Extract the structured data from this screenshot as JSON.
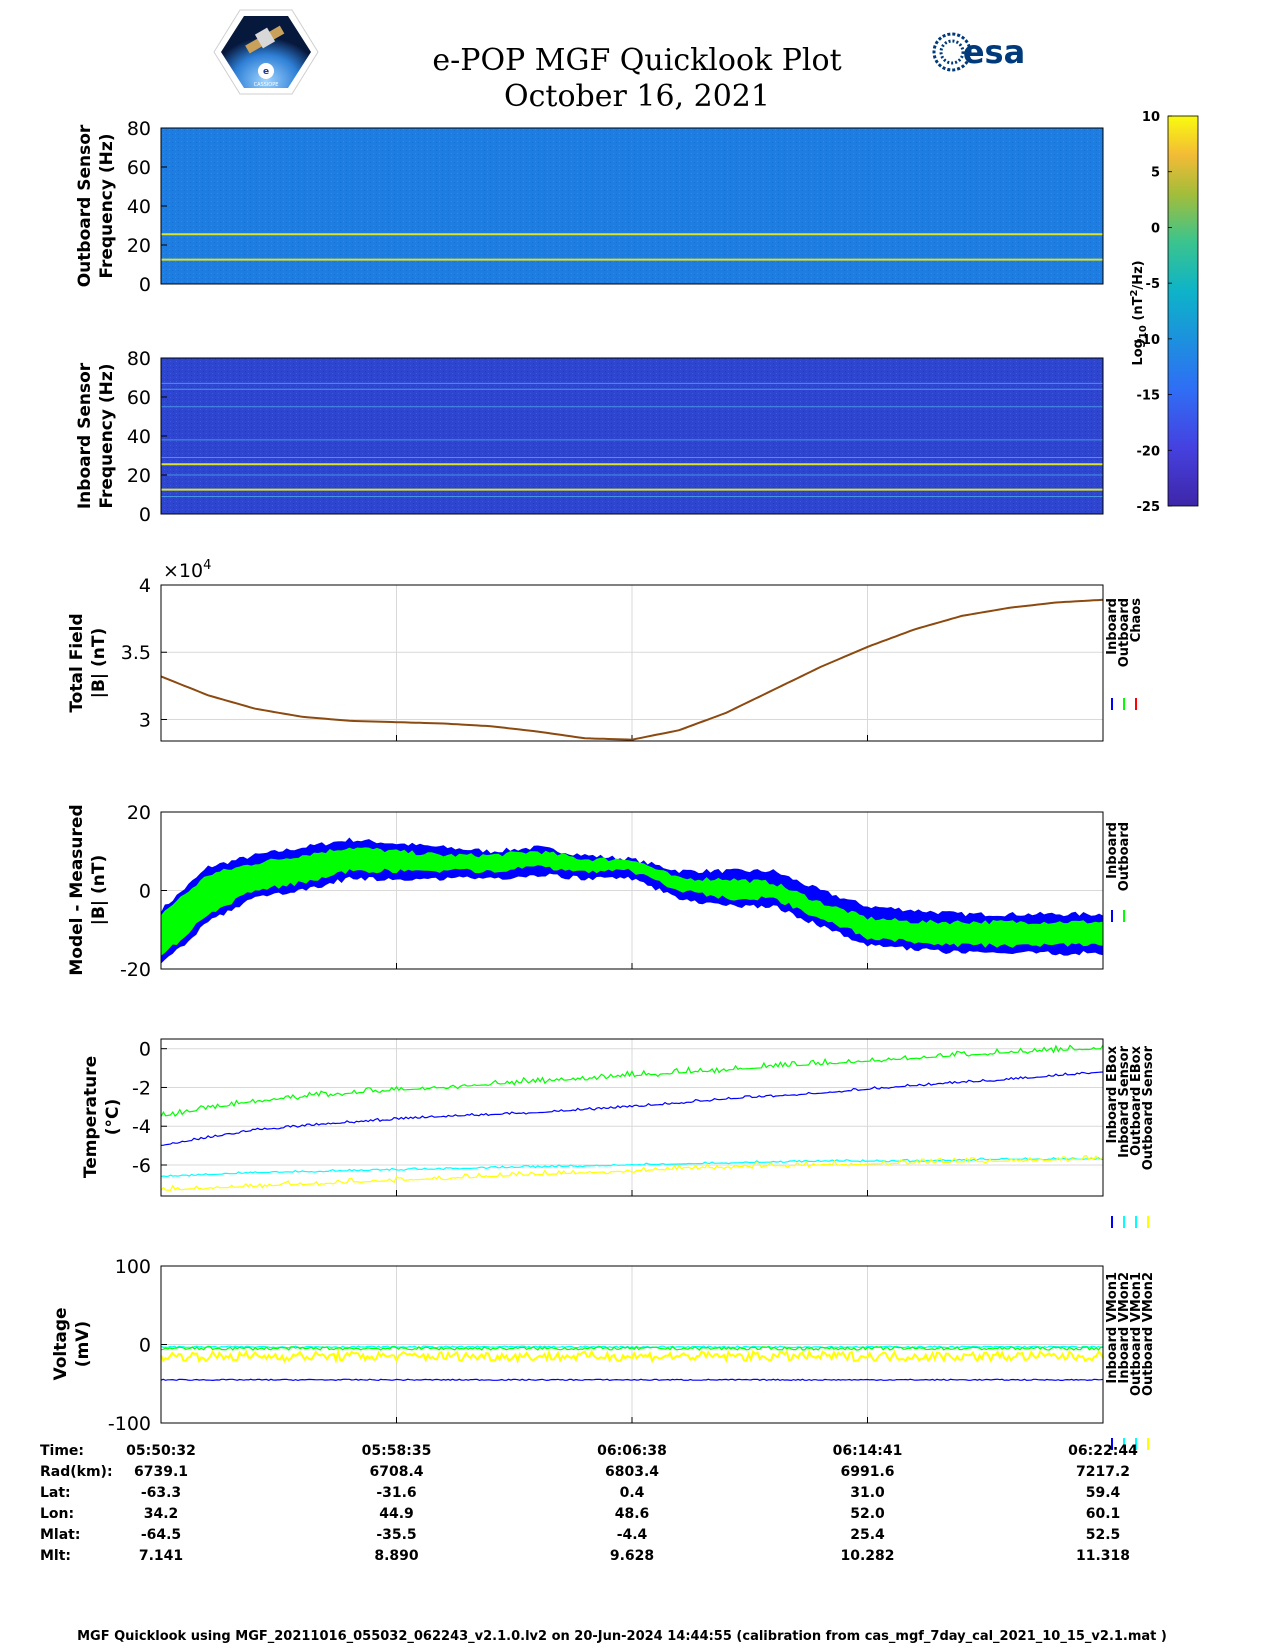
{
  "header": {
    "title": "e-POP MGF Quicklook Plot",
    "date": "October 16, 2021",
    "logo_left": "CASSIOPE",
    "logo_right": "esa"
  },
  "colors": {
    "inboard": "#0000ff",
    "outboard": "#00ff00",
    "chaos": "#ff0000",
    "outboard_ebox": "#00ffff",
    "outboard_sensor": "#ffff00",
    "line_brown": "#8b4a10",
    "spec_bg_out": "#1e7de0",
    "spec_bg_in": "#2e46cf",
    "line_yellow": "#dbe22c"
  },
  "colorbar": {
    "label_main": "Log",
    "label_sub": "10",
    "label_unit": " (nT",
    "label_exp": "2",
    "label_end": "/Hz)",
    "ticks": [
      "10",
      "5",
      "0",
      "-5",
      "-10",
      "-15",
      "-20",
      "-25"
    ],
    "range": [
      -25,
      10
    ]
  },
  "panels": {
    "outboard_spec": {
      "ylabel1": "Outboard Sensor",
      "ylabel2": "Frequency (Hz)",
      "ticks": [
        "80",
        "60",
        "40",
        "20",
        "0"
      ]
    },
    "inboard_spec": {
      "ylabel1": "Inboard Sensor",
      "ylabel2": "Frequency (Hz)",
      "ticks": [
        "80",
        "60",
        "40",
        "20",
        "0"
      ]
    },
    "total": {
      "ylabel1": "Total Field",
      "ylabel2": "|B| (nT)",
      "ticks": [
        "4",
        "3.5",
        "3"
      ],
      "multiplier": "×10",
      "exp": "4",
      "legend": [
        "Inboard",
        "Outboard",
        "Chaos"
      ]
    },
    "model": {
      "ylabel1": "Model - Measured",
      "ylabel2": "|B| (nT)",
      "ticks": [
        "20",
        "0",
        "-20"
      ],
      "legend": [
        "Inboard",
        "Outboard"
      ]
    },
    "temp": {
      "ylabel1": "Temperature",
      "ylabel2": "(°C)",
      "ticks": [
        "0",
        "-2",
        "-4",
        "-6"
      ],
      "legend": [
        "Inboard EBox",
        "Inboard Sensor",
        "Outboard EBox",
        "Outboard Sensor"
      ]
    },
    "volt": {
      "ylabel1": "Voltage",
      "ylabel2": "(mV)",
      "ticks": [
        "100",
        "0",
        "-100"
      ],
      "legend": [
        "Inboard VMon1",
        "Inboard VMon2",
        "Outboard VMon1",
        "Outboard VMon2"
      ]
    }
  },
  "ephemeris": {
    "labels": [
      "Time:",
      "Rad(km):",
      "Lat:",
      "Lon:",
      "Mlat:",
      "Mlt:"
    ],
    "columns": [
      [
        "05:50:32",
        "6739.1",
        "-63.3",
        "34.2",
        "-64.5",
        "7.141"
      ],
      [
        "05:58:35",
        "6708.4",
        "-31.6",
        "44.9",
        "-35.5",
        "8.890"
      ],
      [
        "06:06:38",
        "6803.4",
        "0.4",
        "48.6",
        "-4.4",
        "9.628"
      ],
      [
        "06:14:41",
        "6991.6",
        "31.0",
        "52.0",
        "25.4",
        "10.282"
      ],
      [
        "06:22:44",
        "7217.2",
        "59.4",
        "60.1",
        "52.5",
        "11.318"
      ]
    ]
  },
  "footer": "MGF Quicklook using MGF_20211016_055032_062243_v2.1.0.lv2 on 20-Jun-2024 14:44:55 (calibration from cas_mgf_7day_cal_2021_10_15_v2.1.mat )",
  "chart_data": [
    {
      "type": "heatmap",
      "name": "Outboard spectrogram",
      "ylabel": "Outboard Sensor Frequency (Hz)",
      "ylim": [
        0,
        80
      ],
      "background_log10_psd": -17,
      "lines_hz": [
        12.5,
        25.5
      ],
      "colorbar_range": [
        -25,
        10
      ]
    },
    {
      "type": "heatmap",
      "name": "Inboard spectrogram",
      "ylabel": "Inboard Sensor Frequency (Hz)",
      "ylim": [
        0,
        80
      ],
      "background_log10_psd": -21,
      "lines_hz": [
        9,
        12.5,
        20,
        25.5,
        29,
        38,
        55,
        64,
        67
      ],
      "colorbar_range": [
        -25,
        10
      ]
    },
    {
      "type": "line",
      "name": "Total Field",
      "ylabel": "Total Field |B| (nT)",
      "ylim": [
        28400,
        40000
      ],
      "tick_scale": 10000,
      "x": [
        0,
        0.05,
        0.1,
        0.15,
        0.2,
        0.25,
        0.3,
        0.35,
        0.4,
        0.45,
        0.5,
        0.55,
        0.6,
        0.65,
        0.7,
        0.75,
        0.8,
        0.85,
        0.9,
        0.95,
        1.0
      ],
      "series": [
        {
          "name": "Inboard",
          "values": [
            33200,
            31800,
            30800,
            30200,
            29900,
            29800,
            29700,
            29500,
            29100,
            28600,
            28500,
            29200,
            30500,
            32200,
            33900,
            35400,
            36700,
            37700,
            38300,
            38700,
            38900
          ]
        },
        {
          "name": "Outboard",
          "values": [
            33200,
            31800,
            30800,
            30200,
            29900,
            29800,
            29700,
            29500,
            29100,
            28600,
            28500,
            29200,
            30500,
            32200,
            33900,
            35400,
            36700,
            37700,
            38300,
            38700,
            38900
          ]
        },
        {
          "name": "Chaos",
          "values": [
            33200,
            31800,
            30800,
            30200,
            29900,
            29800,
            29700,
            29500,
            29100,
            28600,
            28500,
            29200,
            30500,
            32200,
            33900,
            35400,
            36700,
            37700,
            38300,
            38700,
            38900
          ]
        }
      ]
    },
    {
      "type": "area",
      "name": "Model - Measured",
      "ylabel": "Model - Measured |B| (nT)",
      "ylim": [
        -20,
        20
      ],
      "x": [
        0,
        0.05,
        0.1,
        0.15,
        0.2,
        0.25,
        0.3,
        0.35,
        0.4,
        0.45,
        0.5,
        0.55,
        0.6,
        0.65,
        0.7,
        0.75,
        0.8,
        0.85,
        0.9,
        0.95,
        1.0
      ],
      "series": [
        {
          "name": "Inboard",
          "upper": [
            -5,
            6,
            9,
            11,
            13,
            12,
            11,
            10,
            11,
            9,
            8,
            5,
            5,
            5,
            0,
            -4,
            -5,
            -6,
            -6,
            -6,
            -6
          ],
          "lower": [
            -19,
            -8,
            -2,
            0,
            3,
            3,
            3,
            3,
            4,
            3,
            3,
            -2,
            -4,
            -4,
            -9,
            -14,
            -15,
            -16,
            -16,
            -16,
            -16
          ]
        },
        {
          "name": "Outboard",
          "upper": [
            -6,
            4,
            7,
            9,
            11,
            10,
            9,
            9,
            10,
            8,
            8,
            3,
            3,
            2,
            -3,
            -7,
            -8,
            -8,
            -8,
            -8,
            -8
          ],
          "lower": [
            -17,
            -6,
            0,
            2,
            5,
            5,
            5,
            5,
            6,
            5,
            5,
            0,
            -2,
            -2,
            -7,
            -12,
            -13,
            -14,
            -14,
            -14,
            -14
          ]
        }
      ]
    },
    {
      "type": "line",
      "name": "Temperature",
      "ylabel": "Temperature (°C)",
      "ylim": [
        -7.6,
        0.5
      ],
      "x": [
        0,
        0.1,
        0.2,
        0.3,
        0.4,
        0.5,
        0.6,
        0.7,
        0.8,
        0.9,
        1.0
      ],
      "series": [
        {
          "name": "Inboard EBox",
          "values": [
            -3.5,
            -2.7,
            -2.3,
            -2.0,
            -1.7,
            -1.4,
            -1.1,
            -0.8,
            -0.5,
            -0.2,
            0.0
          ]
        },
        {
          "name": "Inboard Sensor",
          "values": [
            -5.0,
            -4.2,
            -3.8,
            -3.5,
            -3.3,
            -3.0,
            -2.6,
            -2.3,
            -1.9,
            -1.6,
            -1.2
          ]
        },
        {
          "name": "Outboard EBox",
          "values": [
            -6.6,
            -6.4,
            -6.3,
            -6.2,
            -6.1,
            -6.0,
            -5.9,
            -5.8,
            -5.8,
            -5.7,
            -5.7
          ]
        },
        {
          "name": "Outboard Sensor",
          "values": [
            -7.3,
            -7.1,
            -6.9,
            -6.7,
            -6.5,
            -6.3,
            -6.1,
            -6.0,
            -5.9,
            -5.8,
            -5.7
          ]
        }
      ]
    },
    {
      "type": "line",
      "name": "Voltage",
      "ylabel": "Voltage (mV)",
      "ylim": [
        -100,
        100
      ],
      "x": [
        0,
        0.25,
        0.5,
        0.75,
        1.0
      ],
      "series": [
        {
          "name": "Inboard VMon1",
          "values": [
            -45,
            -45,
            -45,
            -45,
            -45
          ]
        },
        {
          "name": "Inboard VMon2",
          "values": [
            -5,
            -5,
            -5,
            -5,
            -5
          ]
        },
        {
          "name": "Outboard VMon1",
          "values": [
            -3,
            -3,
            -3,
            -3,
            -3
          ]
        },
        {
          "name": "Outboard VMon2",
          "values": [
            -15,
            -15,
            -15,
            -15,
            -15
          ]
        }
      ]
    }
  ]
}
